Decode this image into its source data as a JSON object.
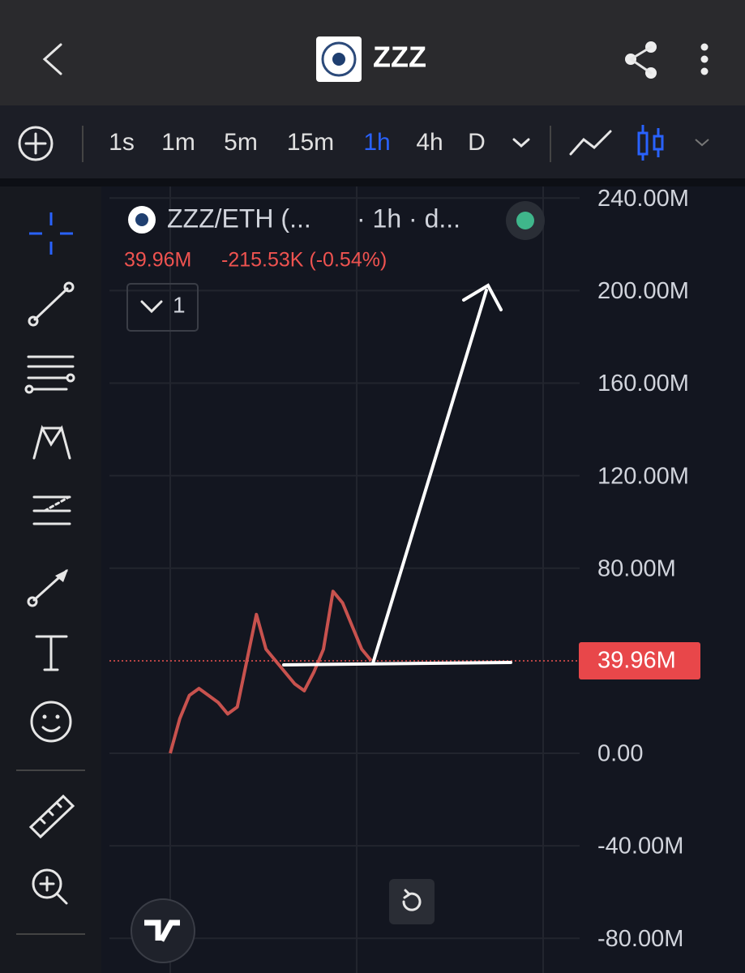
{
  "header": {
    "title": "ZZZ"
  },
  "toolbar": {
    "timeframes": [
      "1s",
      "1m",
      "5m",
      "15m",
      "1h",
      "4h",
      "D"
    ],
    "active": "1h"
  },
  "legend": {
    "symbol": "ZZZ/ETH (...",
    "interval": "· 1h · d...",
    "price": "39.96M",
    "change": "-215.53K (-0.54%)",
    "collapse": "1"
  },
  "chart_data": {
    "type": "line",
    "x": [
      0,
      1,
      2,
      3,
      4,
      5,
      6,
      7,
      8,
      9,
      10,
      11,
      12,
      13,
      14,
      15,
      16,
      17,
      18,
      19,
      20,
      21
    ],
    "xlim": [
      0,
      21
    ],
    "series": [
      {
        "name": "ZZZ/ETH",
        "color": "#c8524e",
        "values": [
          0,
          15,
          25,
          28,
          25,
          22,
          17,
          20,
          40,
          60,
          45,
          40,
          35,
          30,
          27,
          35,
          45,
          70,
          65,
          55,
          45,
          40
        ]
      }
    ],
    "ylim": [
      -95,
      245
    ],
    "yticks": [
      {
        "value": 240,
        "label": "240.00M"
      },
      {
        "value": 200,
        "label": "200.00M"
      },
      {
        "value": 160,
        "label": "160.00M"
      },
      {
        "value": 120,
        "label": "120.00M"
      },
      {
        "value": 80,
        "label": "80.00M"
      },
      {
        "value": 0,
        "label": "0.00"
      },
      {
        "value": -40,
        "label": "-40.00M"
      },
      {
        "value": -80,
        "label": "-80.00M"
      }
    ],
    "last_price": {
      "value": 39.96,
      "label": "39.96M"
    },
    "grid": true
  }
}
